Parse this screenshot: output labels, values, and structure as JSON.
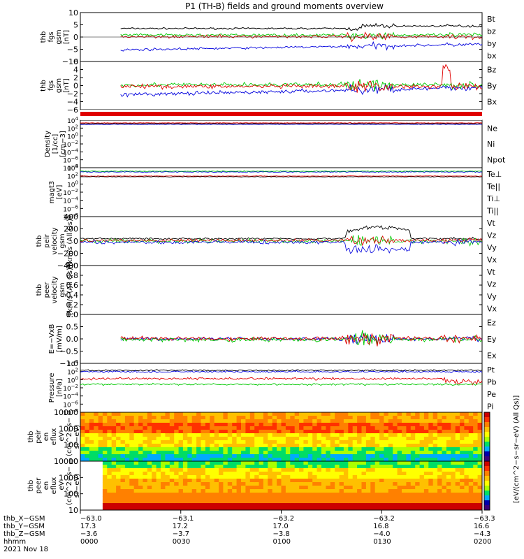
{
  "title": "P1 (TH-B) fields and ground moments overview",
  "colors": {
    "black": "#000000",
    "red": "#e00000",
    "green": "#00c800",
    "blue": "#0000dd",
    "blue2": "#0000ff"
  },
  "chart_data": [
    {
      "type": "line",
      "ylabel": [
        "thb",
        "fgs",
        "gsm",
        "[nT]"
      ],
      "ylim": [
        -10,
        10
      ],
      "yticks": [
        "10",
        "5",
        "0",
        "−5",
        "−10"
      ],
      "series": [
        {
          "name": "Bt",
          "color": "#000000"
        },
        {
          "name": "bz",
          "color": "#e00000"
        },
        {
          "name": "by",
          "color": "#00c800"
        },
        {
          "name": "bx",
          "color": "#0000dd"
        }
      ]
    },
    {
      "type": "line",
      "ylabel": [
        "thb",
        "fgs",
        "gsm",
        "[nT]"
      ],
      "ylim": [
        -6,
        6
      ],
      "yticks": [
        "6",
        "4",
        "2",
        "0",
        "−2",
        "−4",
        "−6"
      ],
      "series": [
        {
          "name": "Bz",
          "color": "#e00000"
        },
        {
          "name": "By",
          "color": "#00c800"
        },
        {
          "name": "Bx",
          "color": "#0000dd"
        }
      ]
    },
    {
      "type": "line",
      "ylabel": [
        "Density",
        "[1/cc]",
        "[cm−3]"
      ],
      "yscale": "log",
      "series": [
        {
          "name": "Ne",
          "color": "#e00000"
        },
        {
          "name": "Ni",
          "color": "#000000"
        },
        {
          "name": "Npot",
          "color": "#0000dd"
        }
      ]
    },
    {
      "type": "line",
      "ylabel": [
        "magt3",
        "[eV]"
      ],
      "yscale": "log",
      "series": [
        {
          "name": "Te⊥",
          "color": "#e00000"
        },
        {
          "name": "Te||",
          "color": "#000000"
        },
        {
          "name": "Ti⊥",
          "color": "#0000dd"
        },
        {
          "name": "Ti||",
          "color": "#00c800"
        }
      ]
    },
    {
      "type": "line",
      "ylabel": [
        "thb",
        "peir",
        "velocity",
        "gsm",
        "[km/s (All Qs)]"
      ],
      "ylim": [
        -400,
        400
      ],
      "yticks": [
        "400",
        "200",
        "0",
        "−200",
        "−400"
      ],
      "series": [
        {
          "name": "Vt",
          "color": "#000000"
        },
        {
          "name": "Vz",
          "color": "#e00000"
        },
        {
          "name": "Vy",
          "color": "#00c800"
        },
        {
          "name": "Vx",
          "color": "#0000dd"
        }
      ]
    },
    {
      "type": "line",
      "ylabel": [
        "thb",
        "peer",
        "velocity",
        "gsm",
        "[km/s (All Qs)]"
      ],
      "ylim": [
        0,
        1
      ],
      "yticks": [
        "1.0",
        "0.8",
        "0.6",
        "0.4",
        "0.2",
        "0.0"
      ],
      "series": [
        {
          "name": "Vt",
          "color": "#000000"
        },
        {
          "name": "Vz",
          "color": "#e00000"
        },
        {
          "name": "Vy",
          "color": "#00c800"
        },
        {
          "name": "Vx",
          "color": "#0000dd"
        }
      ]
    },
    {
      "type": "line",
      "ylabel": [
        "E=−VxB",
        "[mV/m]"
      ],
      "ylim": [
        -1,
        1
      ],
      "yticks": [
        "1.0",
        "0.5",
        "0.0",
        "−0.5",
        "−1.0"
      ],
      "series": [
        {
          "name": "Ez",
          "color": "#e00000"
        },
        {
          "name": "Ey",
          "color": "#00c800"
        },
        {
          "name": "Ex",
          "color": "#0000dd"
        }
      ]
    },
    {
      "type": "line",
      "ylabel": [
        "Pressure",
        "[nPa]"
      ],
      "yscale": "log",
      "series": [
        {
          "name": "Pt",
          "color": "#000000"
        },
        {
          "name": "Pb",
          "color": "#e00000"
        },
        {
          "name": "Pe",
          "color": "#00c800"
        },
        {
          "name": "Pi",
          "color": "#0000dd"
        }
      ]
    },
    {
      "type": "heatmap",
      "ylabel": [
        "thb",
        "peir",
        "en",
        "eflux",
        "eV",
        "(cm^2−s−",
        "sr−eV)"
      ],
      "yscale": "log",
      "yticks": [
        "10000",
        "1000",
        "100",
        "10"
      ]
    },
    {
      "type": "heatmap",
      "ylabel": [
        "thb",
        "peer",
        "en",
        "eflux",
        "eV",
        "(cm^2−s−",
        "sr−eV)"
      ],
      "yscale": "log",
      "yticks": [
        "10000",
        "1000",
        "100",
        "10"
      ]
    }
  ],
  "colorbar": {
    "label": "[eV/(cm^2−s−sr−eV)]",
    "label2": "[eV/(cm^2−s−sr−eV) (All Qs)]"
  },
  "xaxis": {
    "rows": [
      {
        "label": "thb_X−GSM",
        "values": [
          "−63.0",
          "−63.1",
          "−63.2",
          "−63.2",
          "−63.3"
        ]
      },
      {
        "label": "thb_Y−GSM",
        "values": [
          "17.3",
          "17.2",
          "17.0",
          "16.8",
          "16.6"
        ]
      },
      {
        "label": "thb_Z−GSM",
        "values": [
          "−3.6",
          "−3.7",
          "−3.8",
          "−4.0",
          "−4.3"
        ]
      },
      {
        "label": "hhmm",
        "values": [
          "0000",
          "0030",
          "0100",
          "0130",
          "0200"
        ]
      }
    ],
    "date": "2021 Nov 18"
  }
}
